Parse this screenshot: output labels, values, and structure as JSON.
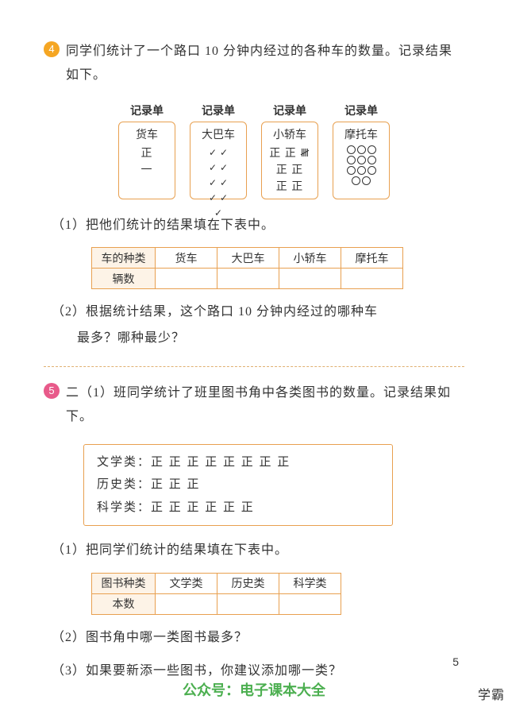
{
  "q4": {
    "number": "4",
    "number_bg": "#f5a623",
    "prompt": "同学们统计了一个路口 10 分钟内经过的各种车的数量。记录结果如下。",
    "cards_header": "记录单",
    "cards": {
      "truck": {
        "label": "货车",
        "tally": "正",
        "tally2": "一"
      },
      "bus": {
        "label": "大巴车"
      },
      "car": {
        "label": "小轿车",
        "tally_lines": [
          "正 正 𝍸",
          "正 正",
          "正 正"
        ]
      },
      "moto": {
        "label": "摩托车"
      }
    },
    "sub1": "（1）把他们统计的结果填在下表中。",
    "table": {
      "row_header": "车的种类",
      "cols": [
        "货车",
        "大巴车",
        "小轿车",
        "摩托车"
      ],
      "count_label": "辆数"
    },
    "sub2_a": "（2）根据统计结果，这个路口 10 分钟内经过的哪种车",
    "sub2_b": "最多？哪种最少？"
  },
  "q5": {
    "number": "5",
    "number_bg": "#e85a8a",
    "prompt": "二（1）班同学统计了班里图书角中各类图书的数量。记录结果如下。",
    "books": {
      "lit_label": "文学类：",
      "lit_tally": "正 正 正 正 正 正 正 正",
      "his_label": "历史类：",
      "his_tally": "正 正 正",
      "sci_label": "科学类：",
      "sci_tally": "正 正 正 正 正 正"
    },
    "sub1": "（1）把同学们统计的结果填在下表中。",
    "table": {
      "row_header": "图书种类",
      "cols": [
        "文学类",
        "历史类",
        "科学类"
      ],
      "count_label": "本数"
    },
    "sub2": "（2）图书角中哪一类图书最多？",
    "sub3": "（3）如果要新添一些图书，你建议添加哪一类？"
  },
  "page_number": "5",
  "footer": "公众号：电子课本大全",
  "watermark": "学霸"
}
